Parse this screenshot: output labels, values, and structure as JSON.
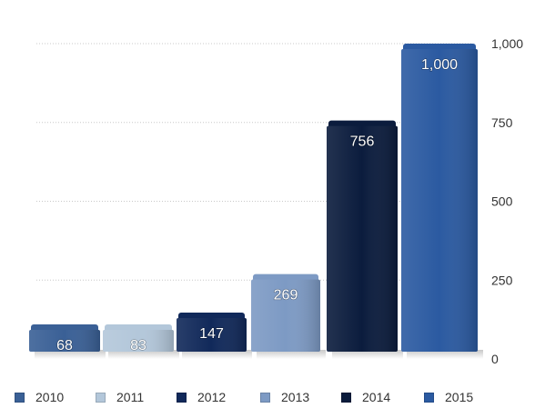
{
  "chart_data": {
    "type": "bar",
    "categories": [
      "2010",
      "2011",
      "2012",
      "2013",
      "2014",
      "2015"
    ],
    "values": [
      68,
      83,
      147,
      269,
      756,
      1000
    ],
    "data_labels": [
      "68",
      "83",
      "147",
      "269",
      "756",
      "1,000"
    ],
    "colors": [
      "#3a6096",
      "#b3c7da",
      "#11295a",
      "#7d9ac4",
      "#0b1c3d",
      "#2b5aa1"
    ],
    "ylim": [
      0,
      1000
    ],
    "yticks": [
      0,
      250,
      500,
      750,
      1000
    ],
    "ytick_labels": [
      "0",
      "250",
      "500",
      "750",
      "1,000"
    ],
    "y_axis_position": "right",
    "grid": true,
    "legend": {
      "position": "bottom",
      "entries": [
        "2010",
        "2011",
        "2012",
        "2013",
        "2014",
        "2015"
      ]
    },
    "title": "",
    "xlabel": "",
    "ylabel": ""
  }
}
